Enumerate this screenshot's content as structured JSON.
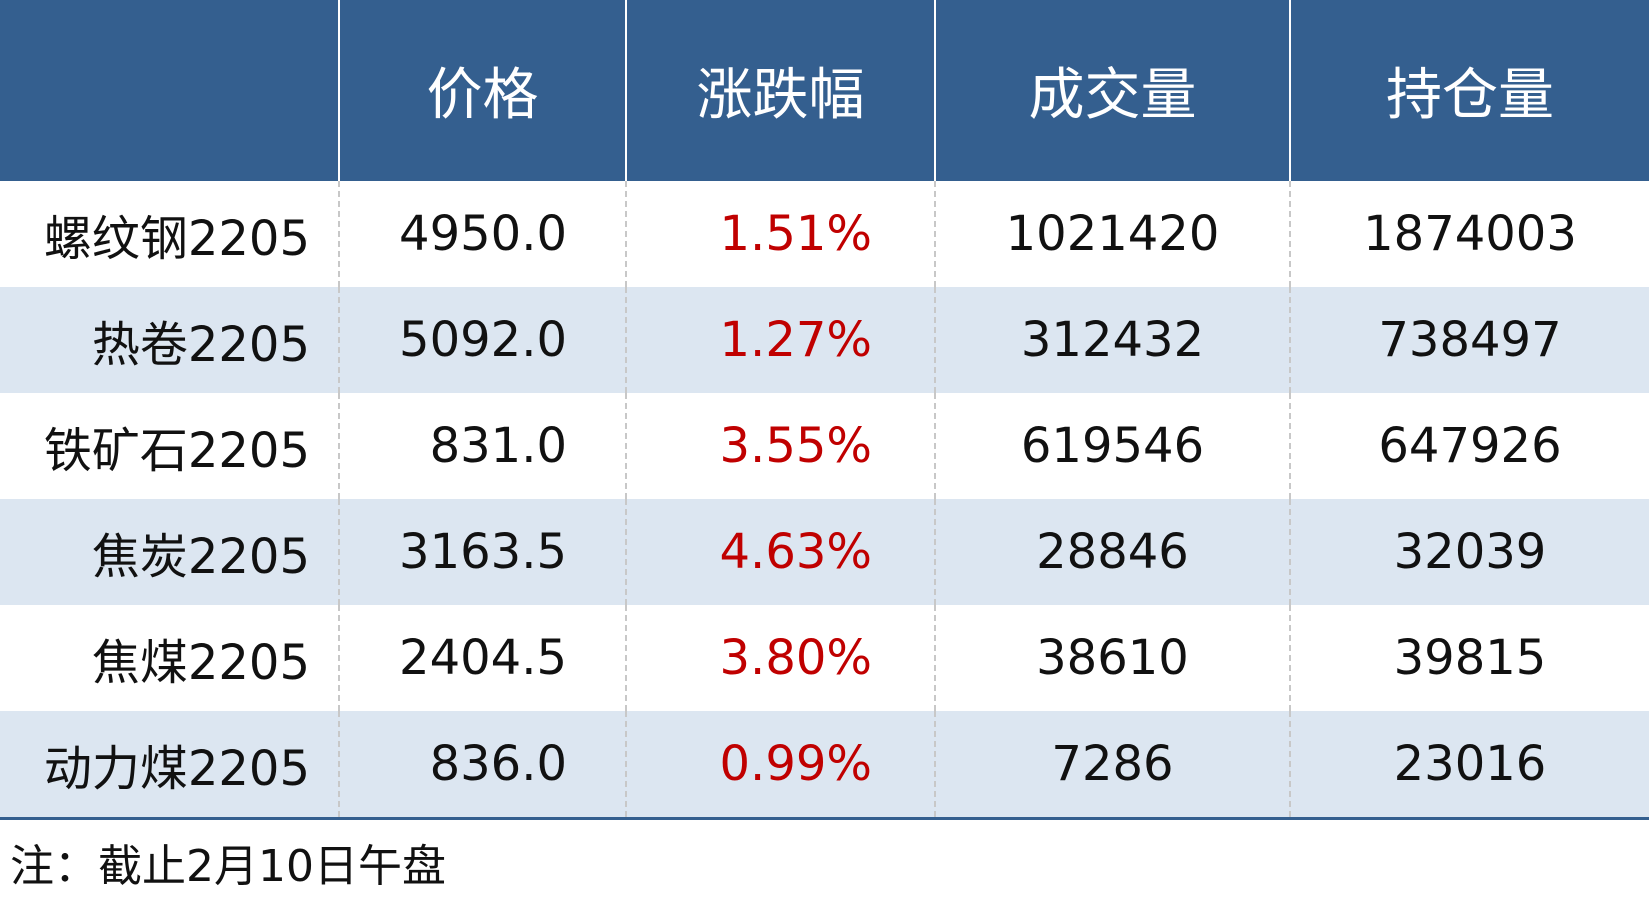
{
  "table": {
    "columns": [
      "价格",
      "涨跌幅",
      "成交量",
      "持仓量"
    ],
    "rows": [
      [
        "螺纹钢2205",
        "4950.0",
        "1.51%",
        "1021420",
        "1874003"
      ],
      [
        "热卷2205",
        "5092.0",
        "1.27%",
        "312432",
        "738497"
      ],
      [
        "铁矿石2205",
        "831.0",
        "3.55%",
        "619546",
        "647926"
      ],
      [
        "焦炭2205",
        "3163.5",
        "4.63%",
        "28846",
        "32039"
      ],
      [
        "焦煤2205",
        "2404.5",
        "3.80%",
        "38610",
        "39815"
      ],
      [
        "动力煤2205",
        "836.0",
        "0.99%",
        "7286",
        "23016"
      ]
    ]
  },
  "note": "注：截止2月10日午盘"
}
